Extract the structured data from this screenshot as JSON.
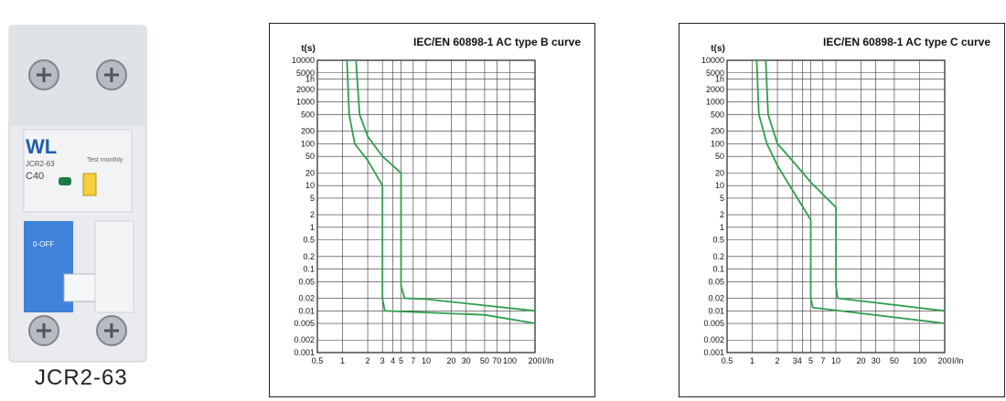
{
  "product": {
    "name": "JCR2-63",
    "brand_mark": "WL",
    "model_label": "JCR2-63",
    "rating_label": "C40",
    "test_label": "Test monthly",
    "switch_label": "0-OFF"
  },
  "chart_data": [
    {
      "type": "line",
      "title": "IEC/EN 60898-1 AC type B curve",
      "xlabel": "I/In",
      "ylabel": "t(s)",
      "x_scale": "log",
      "y_scale": "log",
      "xlim": [
        0.5,
        200
      ],
      "ylim": [
        0.001,
        10000
      ],
      "x_ticks": [
        "0.5",
        "1",
        "2",
        "3",
        "4",
        "5",
        "7",
        "10",
        "20",
        "30",
        "50",
        "70",
        "100",
        "200"
      ],
      "y_ticks": [
        "10000",
        "5000",
        "1h",
        "2000",
        "1000",
        "500",
        "200",
        "100",
        "50",
        "20",
        "10",
        "5",
        "2",
        "1",
        "0.5",
        "0.2",
        "0.1",
        "0.05",
        "0.02",
        "0.01",
        "0.005",
        "0.002",
        "0.001"
      ],
      "grid": true,
      "series": [
        {
          "color": "#2e9e4e",
          "values": [
            [
              1.13,
              10000
            ],
            [
              1.2,
              500
            ],
            [
              1.4,
              100
            ],
            [
              2.0,
              40
            ],
            [
              3.0,
              10
            ],
            [
              3.0,
              5
            ],
            [
              3.0,
              0.02
            ],
            [
              3.2,
              0.01
            ],
            [
              50,
              0.008
            ],
            [
              200,
              0.005
            ]
          ]
        },
        {
          "color": "#2e9e4e",
          "values": [
            [
              1.45,
              10000
            ],
            [
              1.6,
              500
            ],
            [
              2.0,
              150
            ],
            [
              3.0,
              50
            ],
            [
              5.0,
              20
            ],
            [
              5.0,
              0.04
            ],
            [
              5.5,
              0.02
            ],
            [
              10,
              0.019
            ],
            [
              200,
              0.01
            ]
          ]
        }
      ]
    },
    {
      "type": "line",
      "title": "IEC/EN 60898-1 AC type C curve",
      "xlabel": "I/In",
      "ylabel": "t(s)",
      "x_scale": "log",
      "y_scale": "log",
      "xlim": [
        0.5,
        200
      ],
      "ylim": [
        0.001,
        10000
      ],
      "x_ticks": [
        "0.5",
        "1",
        "2",
        "3",
        "4",
        "5",
        "7",
        "10",
        "20",
        "30",
        "50",
        "100",
        "200"
      ],
      "x_tick_labels": [
        "0.5",
        "1",
        "2",
        "34",
        "5",
        "7",
        "10",
        "20",
        "30",
        "50",
        "100",
        "200"
      ],
      "y_ticks": [
        "10000",
        "5000",
        "1h",
        "2000",
        "1000",
        "500",
        "200",
        "100",
        "50",
        "20",
        "10",
        "5",
        "2",
        "1",
        "0.5",
        "0.2",
        "0.1",
        "0.05",
        "0.02",
        "0.01",
        "0.005",
        "0.002",
        "0.001"
      ],
      "grid": true,
      "series": [
        {
          "color": "#2e9e4e",
          "values": [
            [
              1.13,
              10000
            ],
            [
              1.2,
              500
            ],
            [
              1.5,
              100
            ],
            [
              2.0,
              30
            ],
            [
              3.0,
              8
            ],
            [
              5.0,
              1.5
            ],
            [
              5.0,
              0.02
            ],
            [
              5.3,
              0.012
            ],
            [
              200,
              0.005
            ]
          ]
        },
        {
          "color": "#2e9e4e",
          "values": [
            [
              1.45,
              10000
            ],
            [
              1.55,
              500
            ],
            [
              2.0,
              100
            ],
            [
              3.0,
              40
            ],
            [
              5.0,
              12
            ],
            [
              10,
              3
            ],
            [
              10,
              0.04
            ],
            [
              10.5,
              0.02
            ],
            [
              200,
              0.01
            ]
          ]
        }
      ]
    }
  ]
}
